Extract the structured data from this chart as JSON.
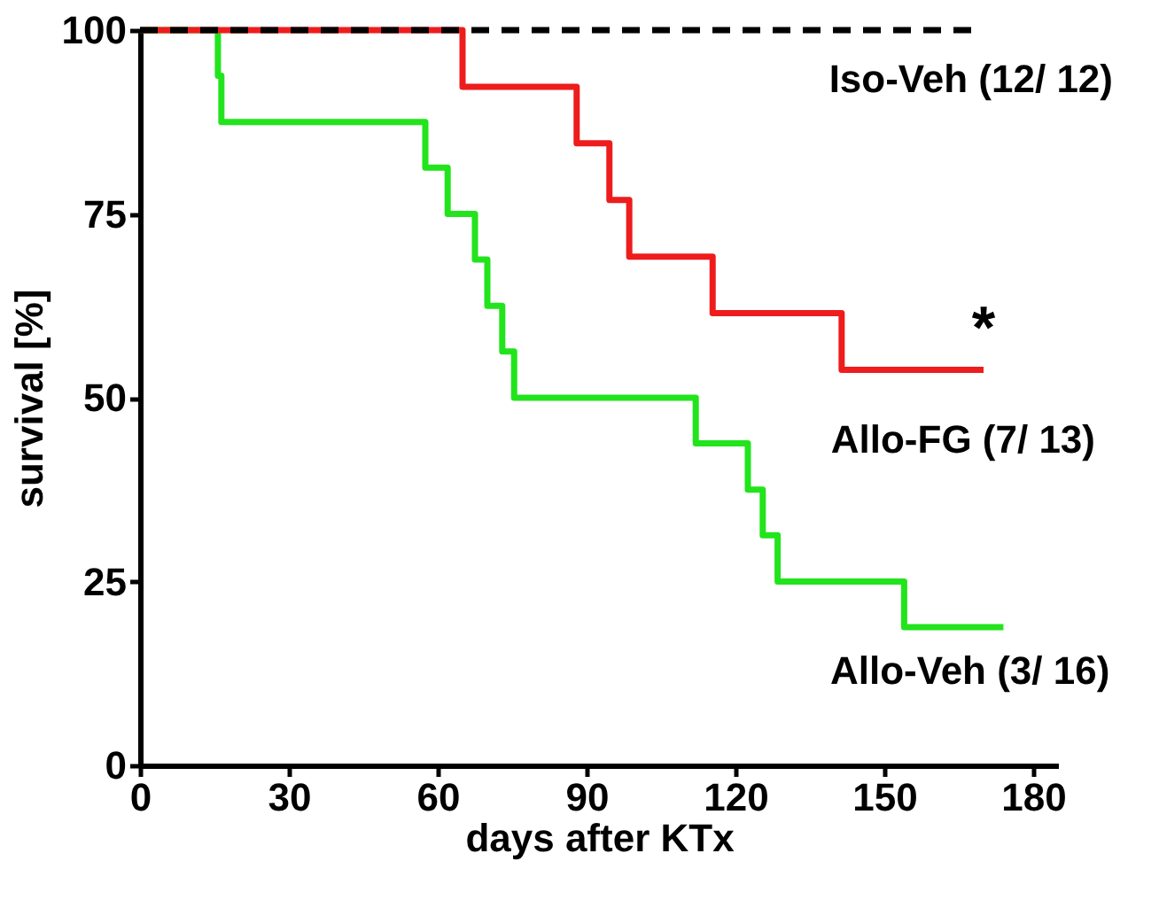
{
  "chart_data": {
    "type": "step",
    "xlabel": "days after KTx",
    "ylabel": "survival [%]",
    "xlim": [
      0,
      185
    ],
    "ylim": [
      0,
      100
    ],
    "xticks": [
      0,
      30,
      60,
      90,
      120,
      150,
      180
    ],
    "yticks": [
      0,
      25,
      50,
      75,
      100
    ],
    "grid": false,
    "marker": "none",
    "series": [
      {
        "name": "Allo-Veh (3/ 16)",
        "color": "#22e41c",
        "line_style": "solid",
        "x": [
          0,
          15.7,
          16.4,
          57.5,
          62,
          67.5,
          70,
          73,
          75.4,
          112,
          122.5,
          125.5,
          128.5,
          154,
          174
        ],
        "values": [
          100,
          93.8,
          87.5,
          81.3,
          75,
          68.8,
          62.5,
          56.3,
          50,
          43.8,
          37.5,
          31.3,
          25,
          18.8,
          18.8
        ]
      },
      {
        "name": "Allo-FG (7/ 13)",
        "color": "#ee1c1c",
        "line_style": "solid",
        "x": [
          0,
          65,
          88,
          94.6,
          98.6,
          115.4,
          141.4,
          170
        ],
        "values": [
          100,
          92.3,
          84.6,
          76.9,
          69.2,
          61.5,
          53.8,
          53.8
        ]
      },
      {
        "name": "Iso-Veh (12/ 12)",
        "color": "#000000",
        "line_style": "dashed",
        "x": [
          0,
          170
        ],
        "values": [
          100,
          100
        ]
      }
    ],
    "annotations": [
      {
        "text": "*",
        "x": 170,
        "y": 53.8
      }
    ]
  }
}
